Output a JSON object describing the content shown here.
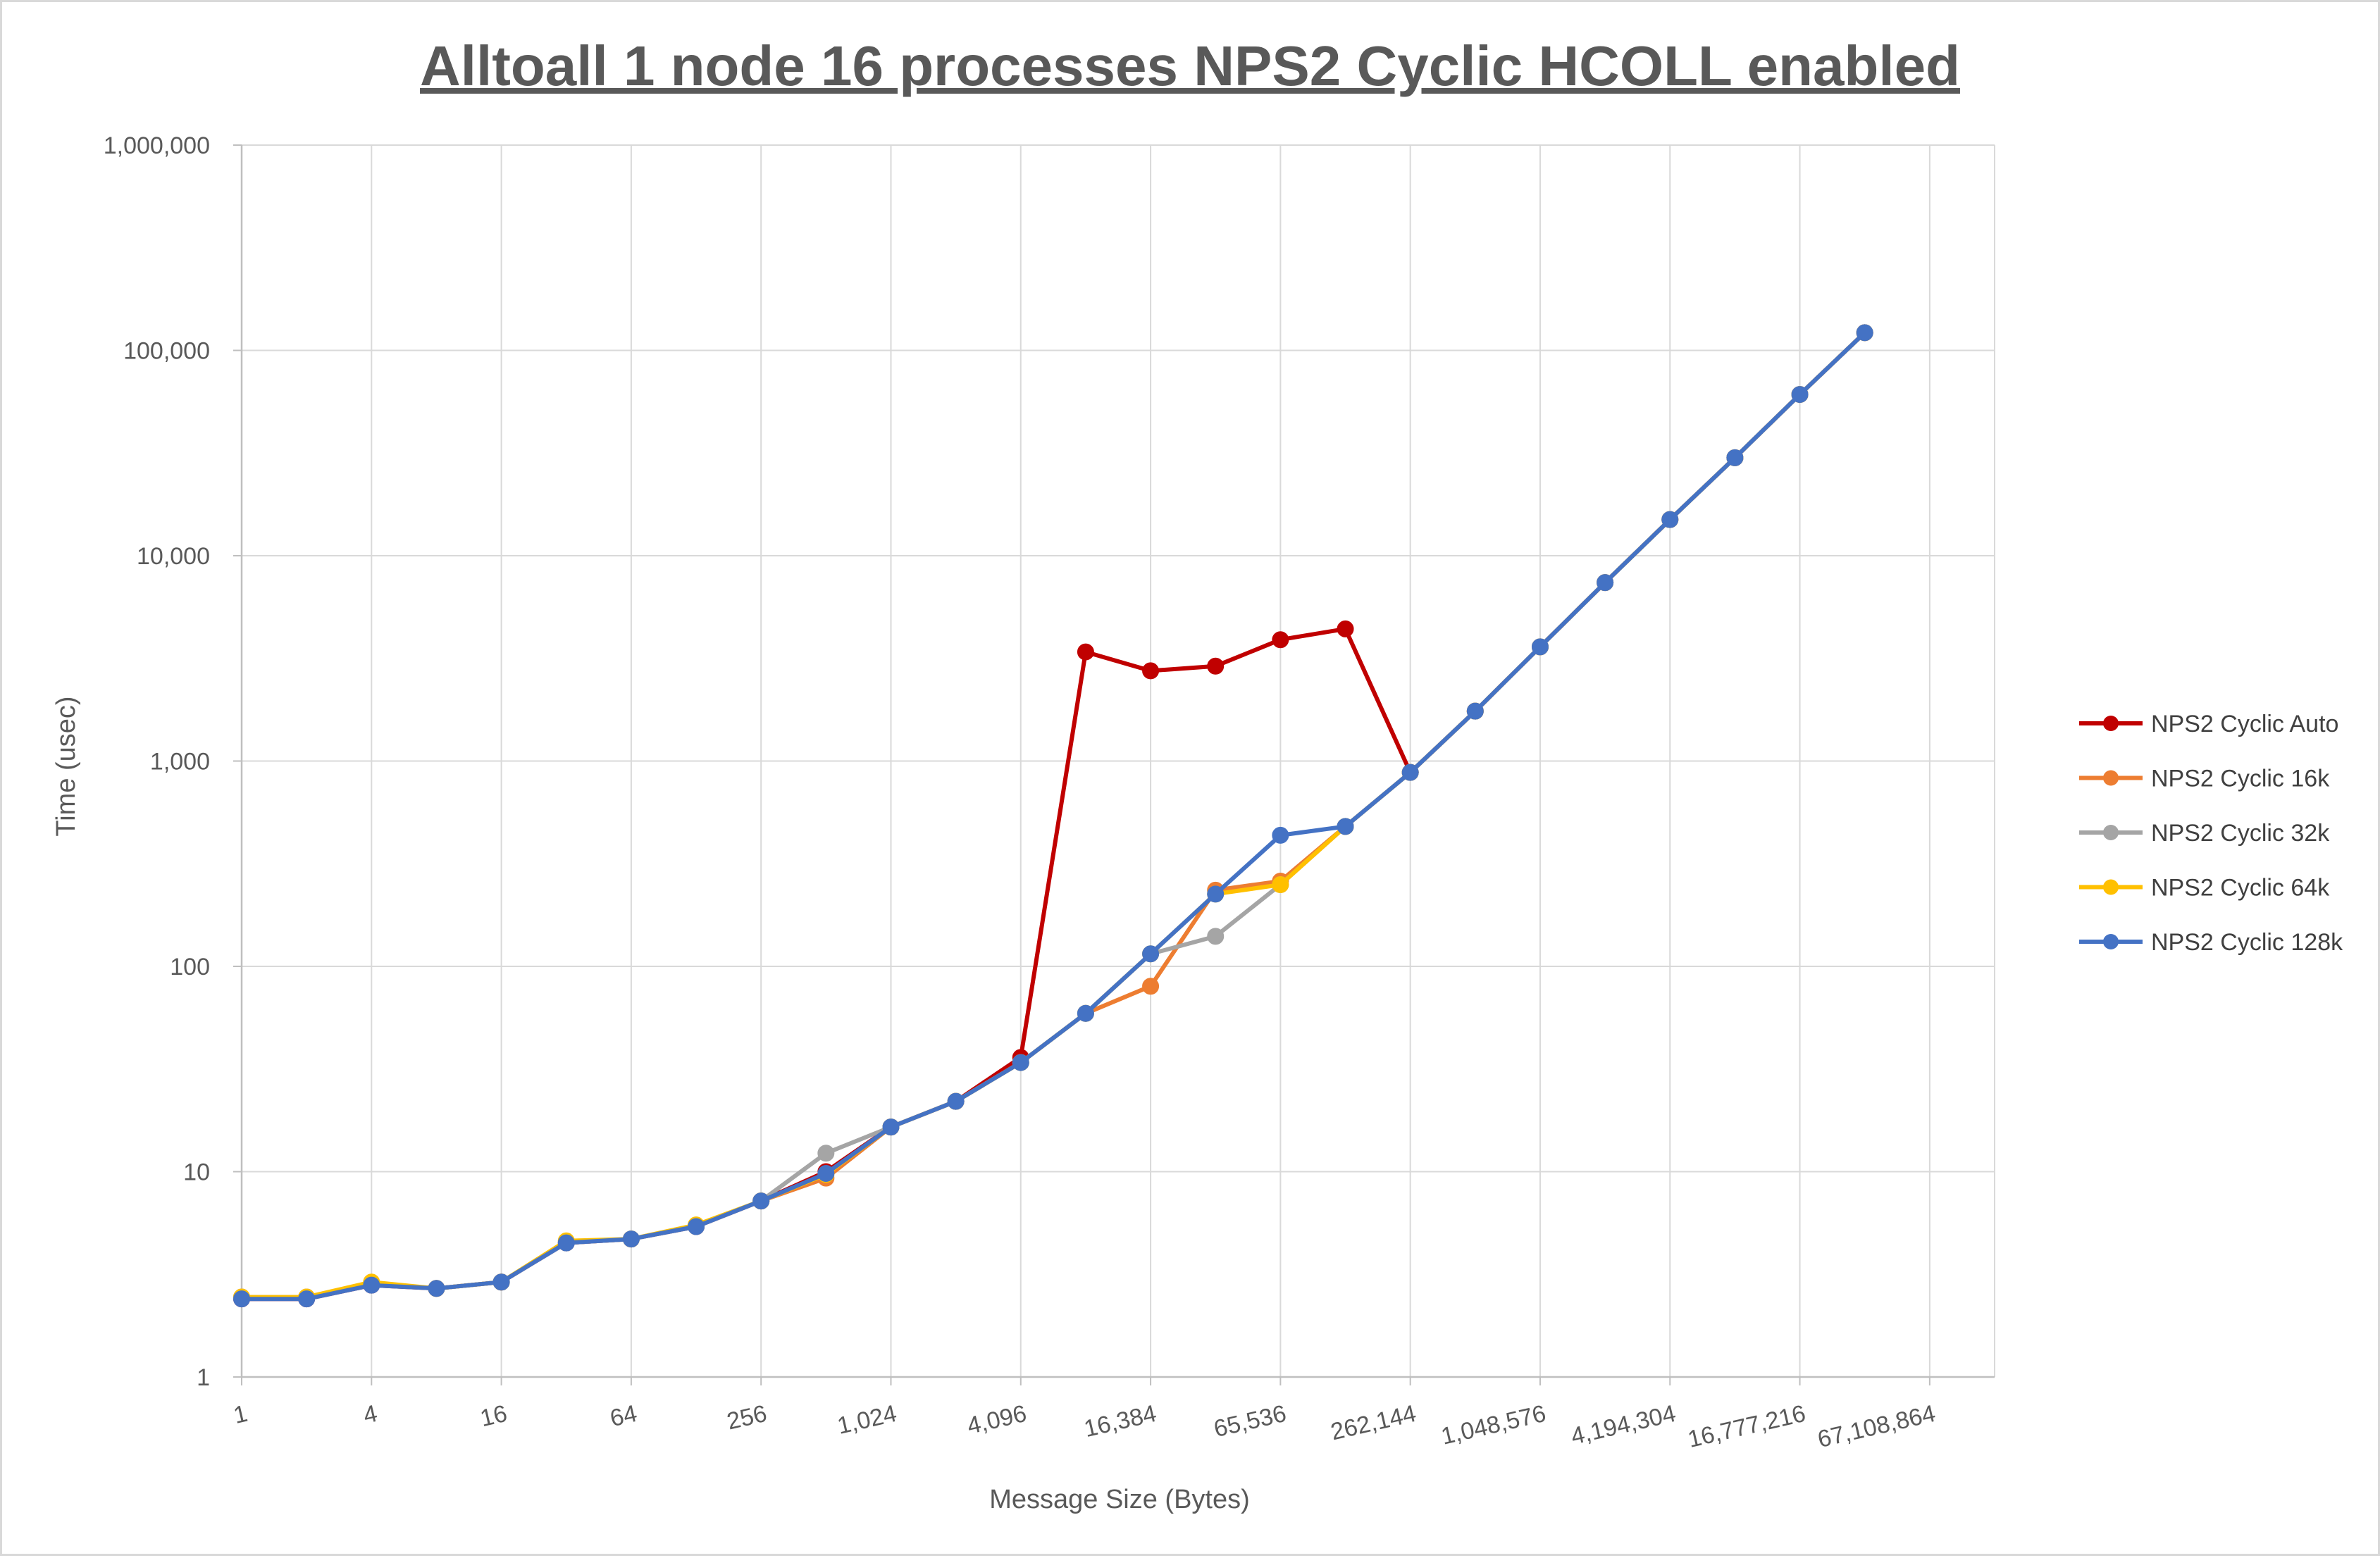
{
  "chart_data": {
    "type": "line",
    "title": "Alltoall 1 node 16 processes NPS2 Cyclic HCOLL enabled",
    "xlabel": "Message Size (Bytes)",
    "ylabel": "Time (usec)",
    "x_scale": "log2",
    "y_scale": "log10",
    "xlim": [
      1,
      134217728
    ],
    "ylim": [
      1,
      1000000
    ],
    "x_tick_values": [
      1,
      4,
      16,
      64,
      256,
      1024,
      4096,
      16384,
      65536,
      262144,
      1048576,
      4194304,
      16777216,
      67108864
    ],
    "x_tick_labels": [
      "1",
      "4",
      "16",
      "64",
      "256",
      "1,024",
      "4,096",
      "16,384",
      "65,536",
      "262,144",
      "1,048,576",
      "4,194,304",
      "16,777,216",
      "67,108,864"
    ],
    "y_tick_values": [
      1,
      10,
      100,
      1000,
      10000,
      100000,
      1000000
    ],
    "y_tick_labels": [
      "1",
      "10",
      "100",
      "1,000",
      "10,000",
      "100,000",
      "1,000,000"
    ],
    "grid": true,
    "legend_position": "right",
    "x": [
      1,
      2,
      4,
      8,
      16,
      32,
      64,
      128,
      256,
      512,
      1024,
      2048,
      4096,
      8192,
      16384,
      32768,
      65536,
      131072,
      262144,
      524288,
      1048576,
      2097152,
      4194304,
      8388608,
      16777216,
      33554432
    ],
    "series": [
      {
        "name": "NPS2 Cyclic Auto",
        "color": "#c00000",
        "values": [
          2.4,
          2.4,
          2.8,
          2.7,
          2.9,
          4.5,
          4.7,
          5.4,
          7.2,
          10,
          16.5,
          22,
          36,
          3400,
          2750,
          2900,
          3900,
          4400,
          880,
          1750,
          3600,
          7400,
          15000,
          30000,
          61000,
          122000
        ]
      },
      {
        "name": "NPS2 Cyclic 16k",
        "color": "#ed7d31",
        "values": [
          2.45,
          2.45,
          2.85,
          2.7,
          2.9,
          4.5,
          4.7,
          5.4,
          7.2,
          9.3,
          16.5,
          22,
          34,
          59,
          80,
          235,
          260,
          480,
          880,
          1750,
          3600,
          7400,
          15000,
          30000,
          61000,
          122000
        ]
      },
      {
        "name": "NPS2 Cyclic 32k",
        "color": "#a5a5a5",
        "values": [
          2.45,
          2.45,
          2.85,
          2.7,
          2.9,
          4.5,
          4.7,
          5.4,
          7.2,
          12.3,
          16.5,
          22,
          34,
          59,
          115,
          140,
          250,
          480,
          880,
          1750,
          3600,
          7400,
          15000,
          30000,
          61000,
          122000
        ]
      },
      {
        "name": "NPS2 Cyclic 64k",
        "color": "#ffc000",
        "values": [
          2.45,
          2.45,
          2.9,
          2.7,
          2.9,
          4.6,
          4.7,
          5.5,
          7.2,
          9.7,
          16.5,
          22,
          34,
          59,
          115,
          225,
          250,
          480,
          880,
          1750,
          3600,
          7400,
          15000,
          30000,
          61000,
          122000
        ]
      },
      {
        "name": "NPS2 Cyclic 128k",
        "color": "#4472c4",
        "values": [
          2.4,
          2.4,
          2.8,
          2.7,
          2.9,
          4.5,
          4.7,
          5.4,
          7.2,
          9.8,
          16.5,
          22,
          34,
          59,
          115,
          225,
          435,
          480,
          880,
          1750,
          3600,
          7400,
          15000,
          30000,
          61000,
          122000
        ]
      }
    ]
  }
}
